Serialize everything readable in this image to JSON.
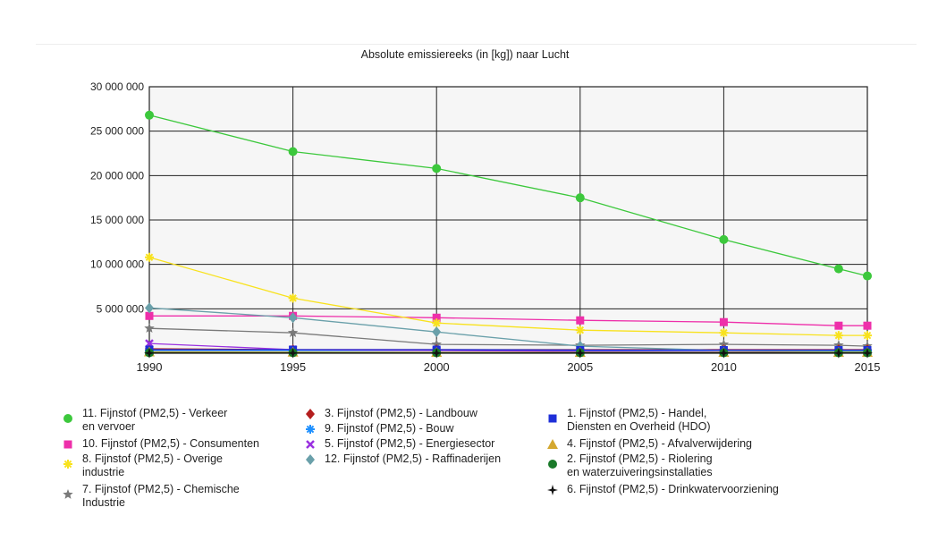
{
  "chart_data": {
    "type": "line",
    "title": "Absolute emissiereeks (in [kg]) naar Lucht",
    "x": [
      1990,
      1995,
      2000,
      2005,
      2010,
      2014,
      2015
    ],
    "x_ticks": [
      "1990",
      "1995",
      "2000",
      "2005",
      "2010",
      "2015"
    ],
    "ylim": [
      0,
      30000000
    ],
    "y_ticks": [
      "30 000 000",
      "25 000 000",
      "20 000 000",
      "15 000 000",
      "10 000 000",
      "5 000 000"
    ],
    "grid": true,
    "legend_position": "bottom",
    "series": [
      {
        "name": "11. Fijnstof (PM2,5) - Verkeer\nen vervoer",
        "color": "#3cc83c",
        "marker": "circle",
        "values": [
          26800000,
          22700000,
          20800000,
          17500000,
          12800000,
          9500000,
          8700000
        ]
      },
      {
        "name": "10. Fijnstof (PM2,5) - Consumenten",
        "color": "#ee2faa",
        "marker": "square",
        "values": [
          4200000,
          4200000,
          4000000,
          3700000,
          3500000,
          3100000,
          3100000
        ]
      },
      {
        "name": "8. Fijnstof (PM2,5) - Overige\nindustrie",
        "color": "#f8e21e",
        "marker": "asterisk",
        "values": [
          10800000,
          6200000,
          3400000,
          2600000,
          2300000,
          2000000,
          2000000
        ]
      },
      {
        "name": "7. Fijnstof (PM2,5) - Chemische\nIndustrie",
        "color": "#7a7a7a",
        "marker": "star",
        "values": [
          2800000,
          2300000,
          1000000,
          900000,
          1000000,
          900000,
          800000
        ]
      },
      {
        "name": "3. Fijnstof (PM2,5) - Landbouw",
        "color": "#b41e1e",
        "marker": "diamond",
        "values": [
          500000,
          400000,
          400000,
          400000,
          400000,
          400000,
          400000
        ]
      },
      {
        "name": "9. Fijnstof (PM2,5) - Bouw",
        "color": "#1e90ff",
        "marker": "asterisk",
        "values": [
          300000,
          300000,
          300000,
          300000,
          300000,
          300000,
          300000
        ]
      },
      {
        "name": "5. Fijnstof (PM2,5) - Energiesector",
        "color": "#9a30e0",
        "marker": "x",
        "values": [
          1100000,
          400000,
          300000,
          200000,
          150000,
          150000,
          150000
        ]
      },
      {
        "name": "12. Fijnstof (PM2,5) - Raffinaderijen",
        "color": "#6aa0aa",
        "marker": "diamond",
        "values": [
          5100000,
          4000000,
          2400000,
          800000,
          300000,
          200000,
          200000
        ]
      },
      {
        "name": "1. Fijnstof (PM2,5) - Handel,\nDiensten en Overheid (HDO)",
        "color": "#1e2fd8",
        "marker": "square",
        "values": [
          400000,
          400000,
          400000,
          350000,
          350000,
          350000,
          350000
        ]
      },
      {
        "name": "4. Fijnstof (PM2,5) - Afvalverwijdering",
        "color": "#d4a830",
        "marker": "triangle",
        "values": [
          150000,
          120000,
          100000,
          100000,
          100000,
          100000,
          100000
        ]
      },
      {
        "name": "2. Fijnstof (PM2,5) - Riolering\nen waterzuiveringsinstallaties",
        "color": "#1a7a2a",
        "marker": "circle",
        "values": [
          50000,
          50000,
          50000,
          50000,
          50000,
          50000,
          50000
        ]
      },
      {
        "name": "6. Fijnstof (PM2,5) - Drinkwatervoorziening",
        "color": "#111111",
        "marker": "star4",
        "values": [
          20000,
          20000,
          20000,
          20000,
          20000,
          20000,
          20000
        ]
      }
    ]
  },
  "legend_columns": [
    [
      0,
      1,
      2,
      3
    ],
    [
      4,
      5,
      6,
      7
    ],
    [
      8,
      9,
      10,
      11
    ]
  ]
}
